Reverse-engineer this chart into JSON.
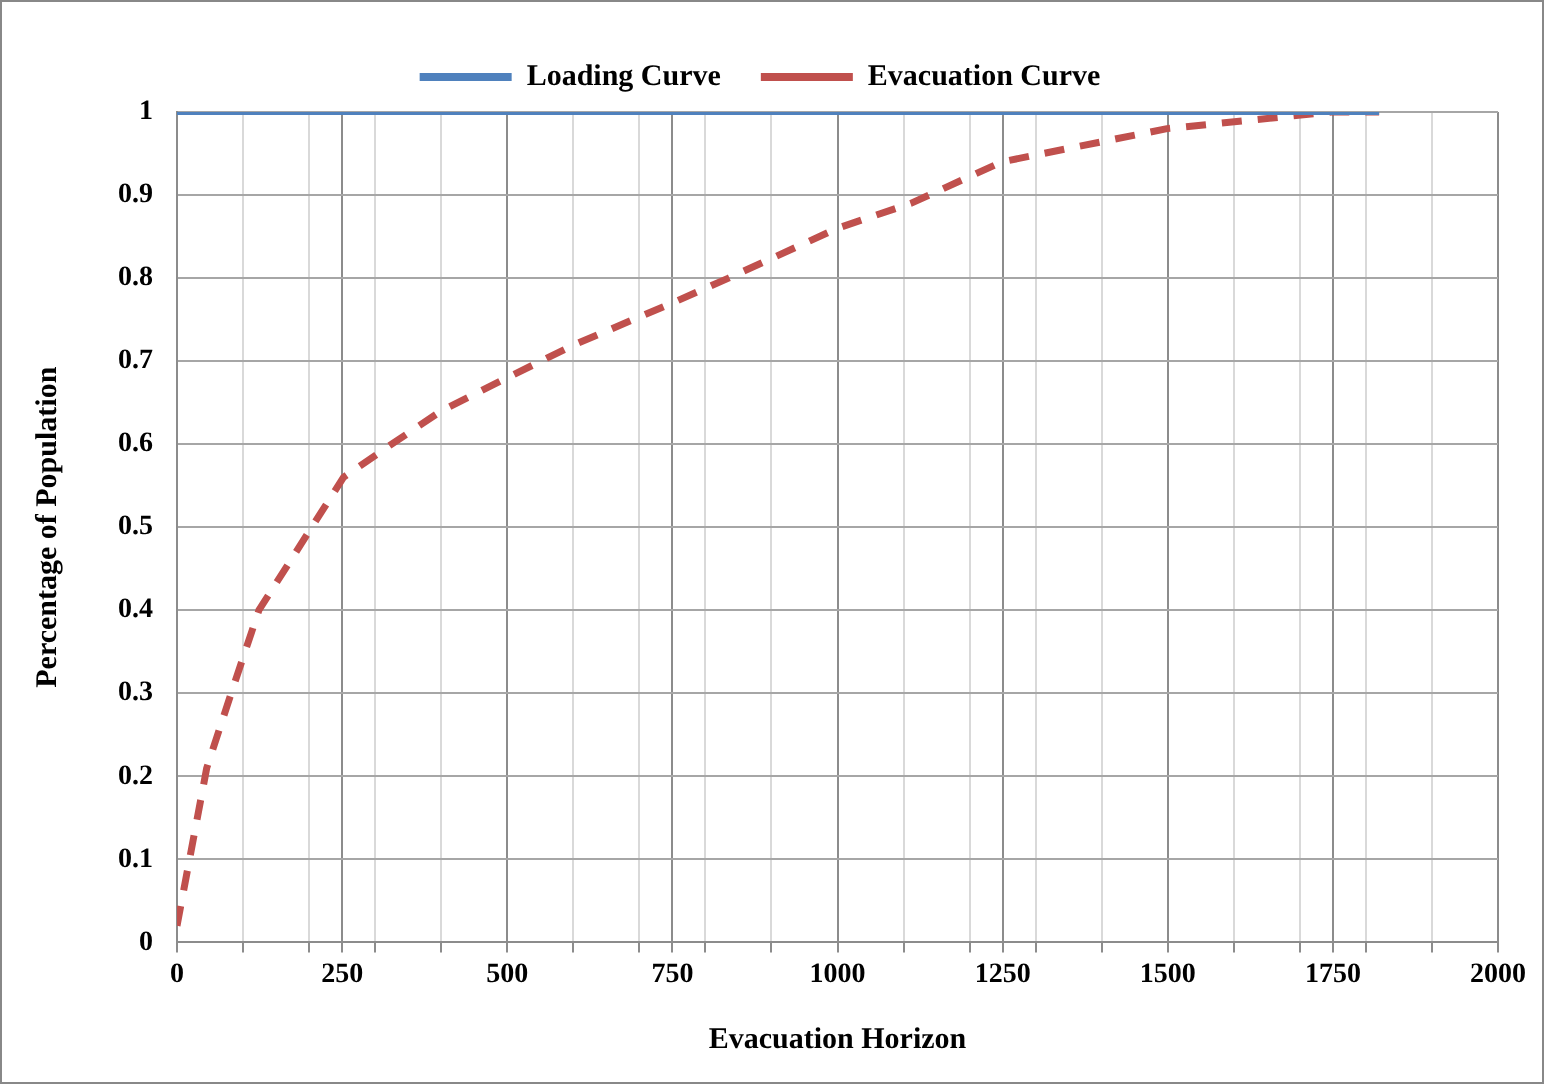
{
  "chart_data": {
    "type": "line",
    "xlabel": "Evacuation Horizon",
    "ylabel": "Percentage of Population",
    "xlim": [
      0,
      2000
    ],
    "xticks": [
      0,
      {
        "value": 100,
        "label": null
      },
      {
        "value": 200,
        "label": null
      },
      250,
      {
        "value": 300,
        "label": null
      },
      {
        "value": 400,
        "label": null
      },
      500,
      {
        "value": 600,
        "label": null
      },
      {
        "value": 700,
        "label": null
      },
      750,
      {
        "value": 800,
        "label": null
      },
      {
        "value": 900,
        "label": null
      },
      1000,
      {
        "value": 1100,
        "label": null
      },
      {
        "value": 1200,
        "label": null
      },
      1250,
      {
        "value": 1300,
        "label": null
      },
      {
        "value": 1400,
        "label": null
      },
      1500,
      {
        "value": 1600,
        "label": null
      },
      {
        "value": 1700,
        "label": null
      },
      1750,
      {
        "value": 1800,
        "label": null
      },
      {
        "value": 1900,
        "label": null
      },
      2000
    ],
    "ylim": [
      0,
      1
    ],
    "yticks": [
      0,
      0.1,
      0.2,
      0.3,
      0.4,
      0.5,
      0.6,
      0.7,
      0.8,
      0.9,
      1
    ],
    "grid": true,
    "legend": "top",
    "marker": "none",
    "series": [
      {
        "name": "Loading Curve",
        "color": "#4f81bd",
        "line_style": "solid",
        "x": [
          0,
          1820
        ],
        "values": [
          1,
          1
        ]
      },
      {
        "name": "Evacuation Curve",
        "color": "#c0504d",
        "line_style": "dashed",
        "x": [
          0,
          45,
          82,
          124,
          204,
          252,
          325,
          400,
          500,
          602,
          750,
          835,
          1000,
          1111,
          1249,
          1499,
          1748,
          1820
        ],
        "values": [
          0.02,
          0.21,
          0.3,
          0.4,
          0.5,
          0.56,
          0.6,
          0.64,
          0.68,
          0.72,
          0.77,
          0.8,
          0.86,
          0.89,
          0.94,
          0.98,
          1,
          1
        ]
      }
    ]
  }
}
